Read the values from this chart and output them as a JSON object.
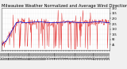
{
  "title": "Milwaukee Weather Normalized and Average Wind Direction (Last 24 Hours)",
  "ylim": [
    0,
    360
  ],
  "yticks": [
    45,
    90,
    135,
    180,
    225,
    270,
    315,
    360
  ],
  "background_color": "#f0f0f0",
  "plot_bg_color": "#ffffff",
  "red_color": "#dd0000",
  "blue_color": "#0000cc",
  "grid_color": "#aaaaaa",
  "n_points": 288,
  "title_fontsize": 3.8,
  "tick_fontsize": 2.5,
  "n_xticks": 48
}
